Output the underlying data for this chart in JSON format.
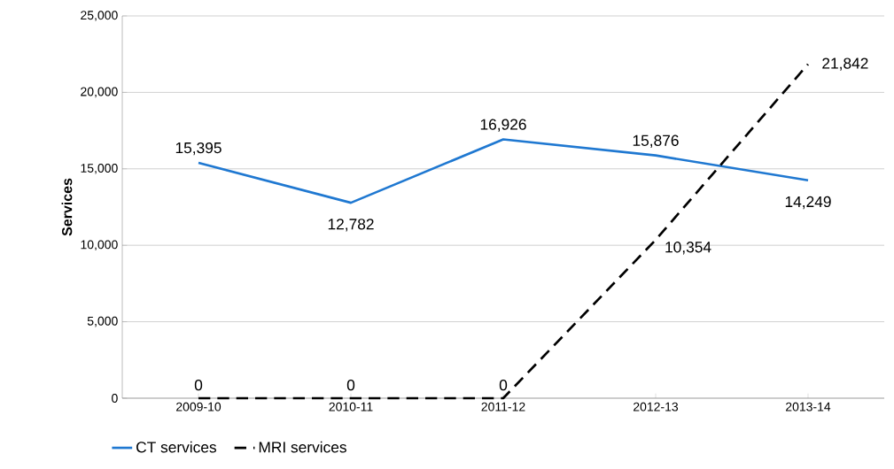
{
  "chart_data": {
    "type": "line",
    "ylabel": "Services",
    "categories": [
      "2009-10",
      "2010-11",
      "2011-12",
      "2012-13",
      "2013-14"
    ],
    "series": [
      {
        "name": "CT services",
        "color": "#1f78d1",
        "line_style": "solid",
        "values": [
          15395,
          12782,
          16926,
          15876,
          14249
        ],
        "value_labels": [
          "15,395",
          "12,782",
          "16,926",
          "15,876",
          "14,249"
        ]
      },
      {
        "name": "MRI services",
        "color": "#000000",
        "line_style": "dashed",
        "values": [
          0,
          0,
          0,
          10354,
          21842
        ],
        "value_labels": [
          "0",
          "0",
          "0",
          "10,354",
          "21,842"
        ]
      }
    ],
    "ylim": [
      0,
      25000
    ],
    "yticks": [
      {
        "value": 0,
        "label": "0"
      },
      {
        "value": 5000,
        "label": "5,000"
      },
      {
        "value": 10000,
        "label": "10,000"
      },
      {
        "value": 15000,
        "label": "15,000"
      },
      {
        "value": 20000,
        "label": "20,000"
      },
      {
        "value": 25000,
        "label": "25,000"
      }
    ],
    "grid": "y",
    "legend": "bottom left",
    "marker": "none"
  }
}
